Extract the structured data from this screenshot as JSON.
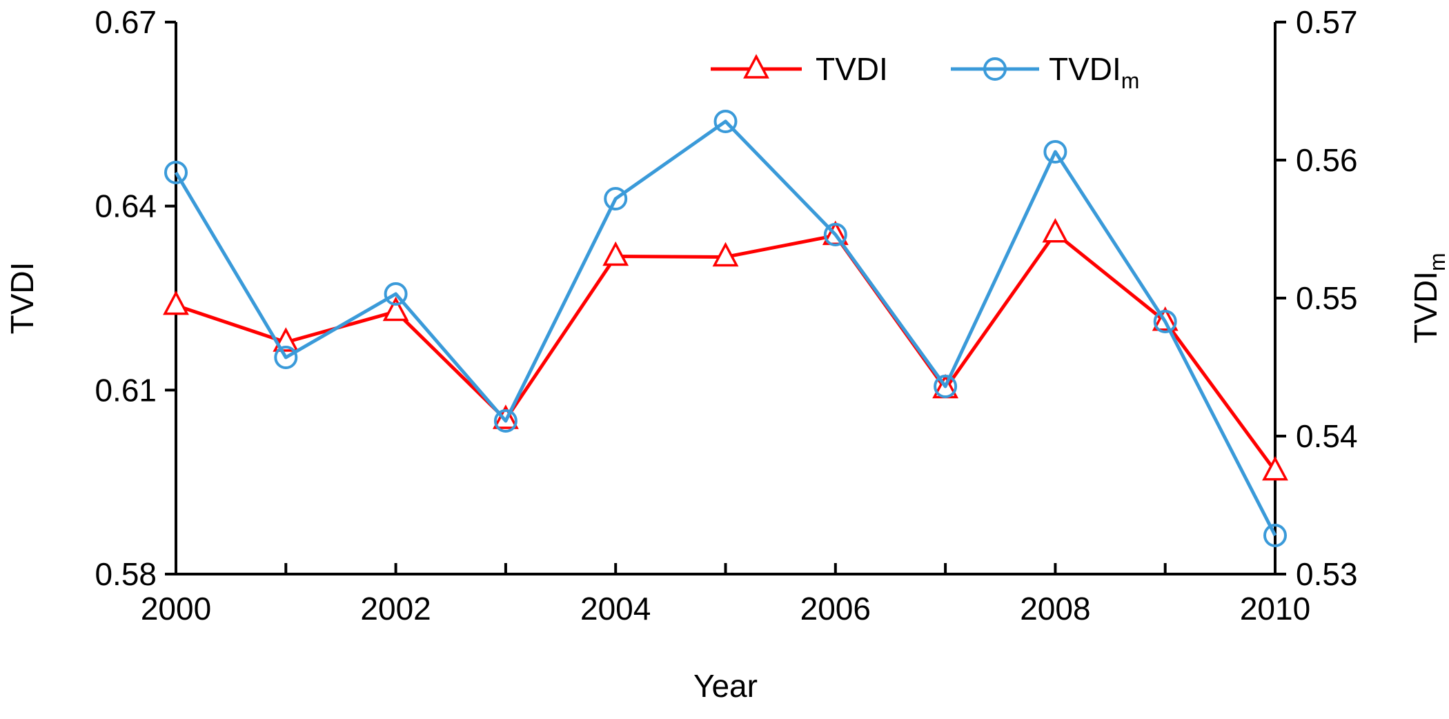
{
  "chart_data": {
    "type": "line",
    "title": "",
    "xlabel": "Year",
    "ylabel_left": "TVDI",
    "ylabel_right": {
      "base": "TVDI",
      "subscript": "m"
    },
    "x": [
      2000,
      2001,
      2002,
      2003,
      2004,
      2005,
      2006,
      2007,
      2008,
      2009,
      2010
    ],
    "x_tick_values": [
      2000,
      2002,
      2004,
      2006,
      2008,
      2010
    ],
    "x_tick_labels": [
      "2000",
      "2002",
      "2004",
      "2006",
      "2008",
      "2010"
    ],
    "xlim": [
      2000,
      2010
    ],
    "ylim_left": [
      0.58,
      0.67
    ],
    "left_tick_values": [
      0.58,
      0.61,
      0.64,
      0.67
    ],
    "left_tick_labels": [
      "0.58",
      "0.61",
      "0.64",
      "0.67"
    ],
    "ylim_right": [
      0.53,
      0.57
    ],
    "right_tick_values": [
      0.53,
      0.54,
      0.55,
      0.56,
      0.57
    ],
    "right_tick_labels": [
      "0.53",
      "0.54",
      "0.55",
      "0.56",
      "0.57"
    ],
    "grid": false,
    "legend_position": "top-right",
    "series": [
      {
        "name": "TVDI",
        "legend_label": {
          "base": "TVDI",
          "subscript": ""
        },
        "axis": "left",
        "marker": "triangle",
        "color": "#ff0000",
        "values": [
          0.6238,
          0.6178,
          0.6228,
          0.6052,
          0.6318,
          0.6317,
          0.6352,
          0.6102,
          0.6356,
          0.6212,
          0.5968
        ]
      },
      {
        "name": "TVDI_m",
        "legend_label": {
          "base": "TVDI",
          "subscript": "m"
        },
        "axis": "right",
        "marker": "circle",
        "color": "#3a9ad9",
        "values": [
          0.5591,
          0.5457,
          0.5503,
          0.5411,
          0.5572,
          0.5628,
          0.5546,
          0.5436,
          0.5606,
          0.5483,
          0.5328
        ]
      }
    ]
  }
}
